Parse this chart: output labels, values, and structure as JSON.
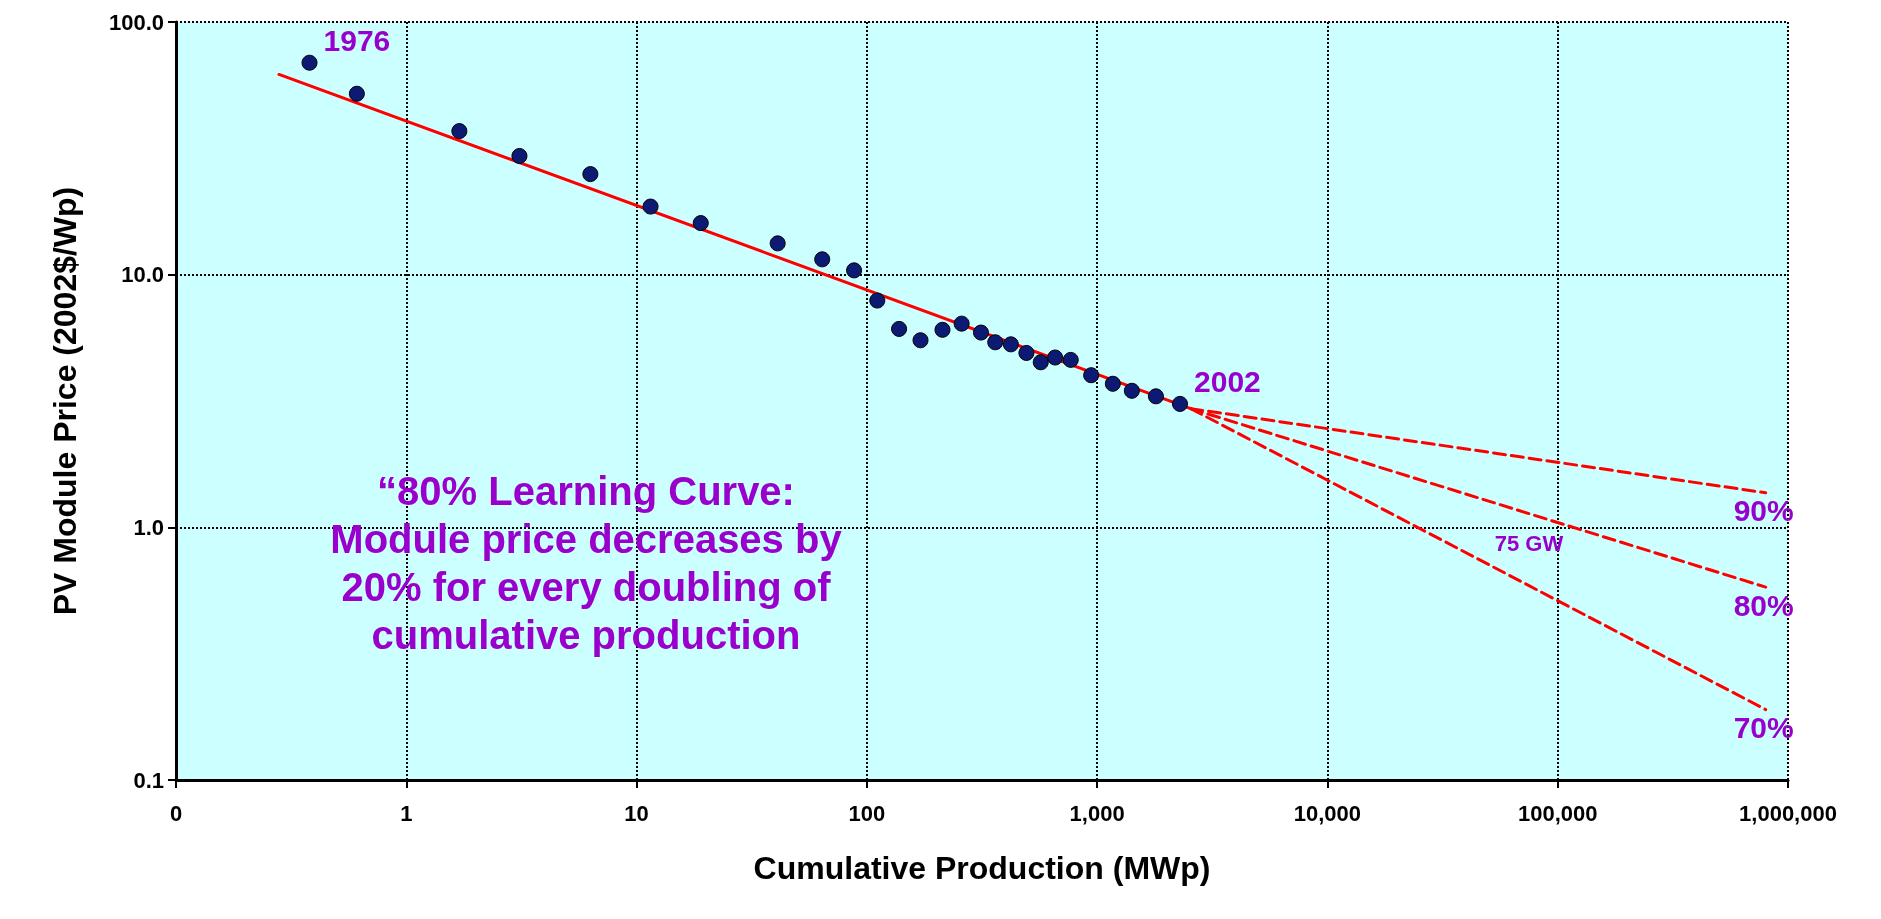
{
  "chart_data": {
    "type": "scatter",
    "xlabel": "Cumulative Production (MWp)",
    "ylabel": "PV Module Price (2002$/Wp)",
    "log": "xy",
    "grid": true,
    "xlim": [
      0.1,
      1000000
    ],
    "ylim": [
      0.1,
      100
    ],
    "xticks": [
      {
        "value": 0.1,
        "label": "0"
      },
      1,
      10,
      100,
      {
        "value": 1000,
        "label": "1,000"
      },
      {
        "value": 10000,
        "label": "10,000"
      },
      {
        "value": 100000,
        "label": "100,000"
      },
      {
        "value": 1000000,
        "label": "1,000,000"
      }
    ],
    "yticks": [
      {
        "value": 0.1,
        "label": "0.1"
      },
      {
        "value": 1,
        "label": "1.0"
      },
      {
        "value": 10,
        "label": "10.0"
      },
      {
        "value": 100,
        "label": "100.0"
      }
    ],
    "series": [
      {
        "marker": "circle",
        "color": "#0d1a73",
        "x": [
          0.38,
          0.61,
          1.7,
          3.1,
          6.3,
          11.5,
          19,
          41,
          64,
          88,
          111,
          138,
          171,
          213,
          258,
          313,
          361,
          422,
          493,
          569,
          657,
          768,
          942,
          1170,
          1415,
          1800,
          2290
        ],
        "values": [
          69,
          52,
          37,
          29.5,
          25,
          18.6,
          16,
          13.3,
          11.5,
          10.4,
          7.9,
          6.1,
          5.5,
          6.05,
          6.4,
          5.9,
          5.4,
          5.3,
          4.9,
          4.5,
          4.7,
          4.6,
          4.0,
          3.7,
          3.47,
          3.3,
          3.08
        ]
      },
      {
        "type": "line",
        "marker": "none",
        "line_style": "solid",
        "color": "#ff0000",
        "x": [
          0.28,
          2550
        ],
        "values": [
          62,
          2.95
        ]
      },
      {
        "type": "line",
        "marker": "none",
        "line_style": "dashed",
        "color": "#ff0000",
        "x": [
          2550,
          800000
        ],
        "values": [
          2.95,
          1.37
        ]
      },
      {
        "type": "line",
        "marker": "none",
        "line_style": "dashed",
        "color": "#ff0000",
        "x": [
          2550,
          800000
        ],
        "values": [
          2.95,
          0.58
        ]
      },
      {
        "type": "line",
        "marker": "none",
        "line_style": "dashed",
        "color": "#ff0000",
        "x": [
          2550,
          800000
        ],
        "values": [
          2.95,
          0.19
        ]
      }
    ],
    "annotations": [
      {
        "text": "1976",
        "x": 0.38,
        "y": 69
      },
      {
        "text": "2002",
        "x": 2290,
        "y": 3.08
      },
      {
        "text": "90%",
        "x": 800000,
        "y": 1.37
      },
      {
        "text": "80%",
        "x": 800000,
        "y": 0.58
      },
      {
        "text": "70%",
        "x": 800000,
        "y": 0.19
      },
      {
        "text": "75 GW",
        "x": 75000,
        "y": 1.13
      },
      "“80% Learning Curve:\nModule price decreases by\n20% for every doubling of\ncumulative production"
    ]
  }
}
